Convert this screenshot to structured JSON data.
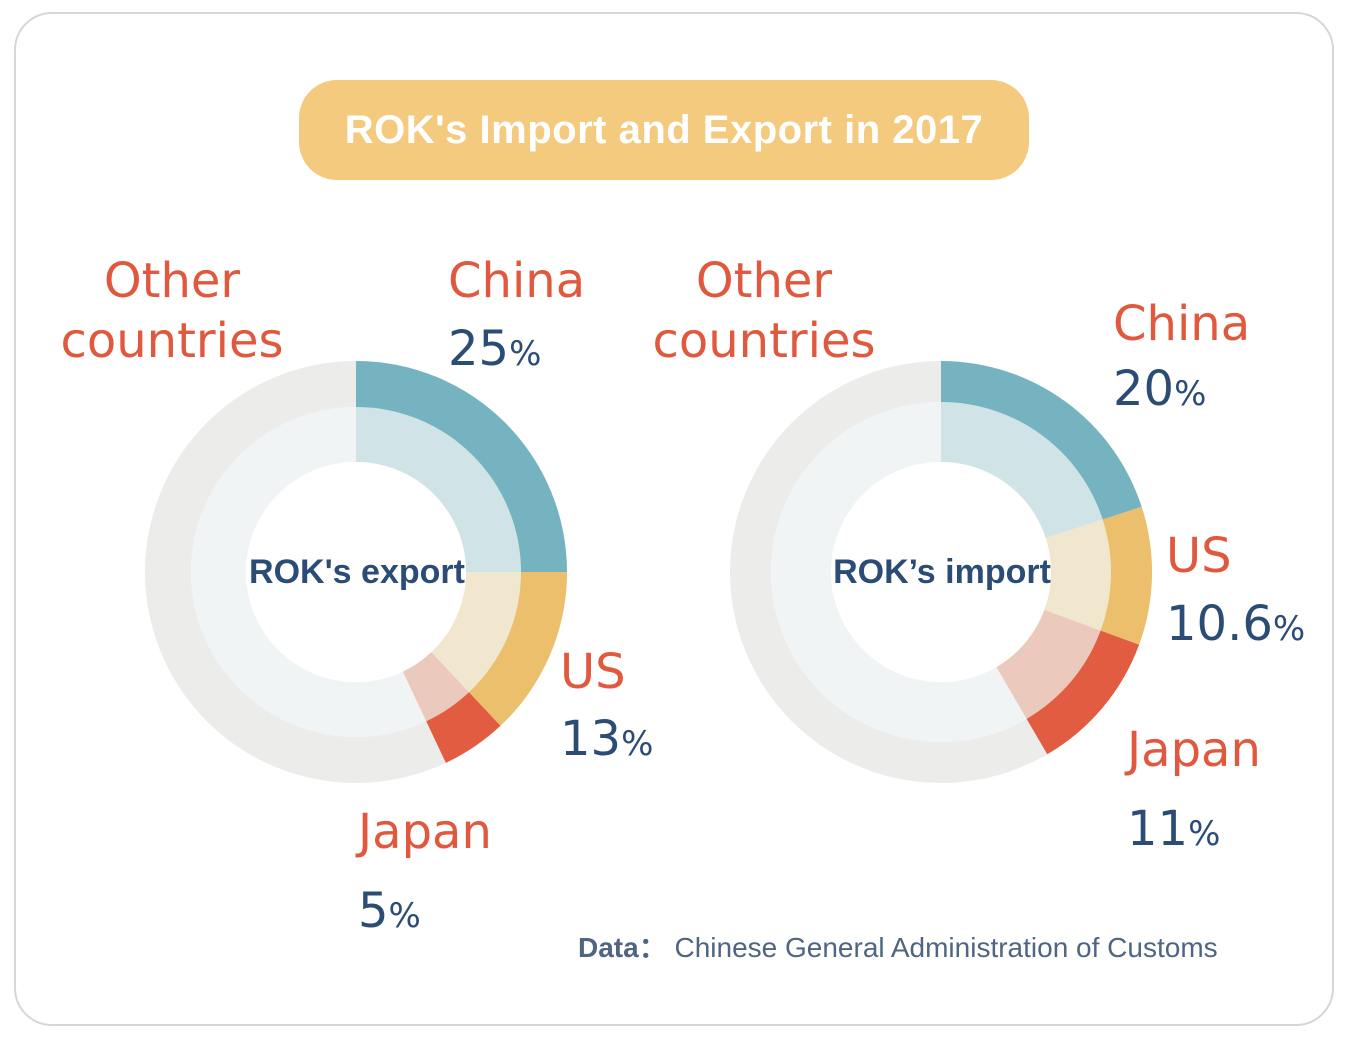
{
  "title": "ROK's Import and Export in 2017",
  "source": {
    "label": "Data",
    "separator": "：",
    "text": "Chinese General Administration of Customs"
  },
  "colors": {
    "china": "#76b3c1",
    "china_light": "#d0e4e7",
    "us": "#ebbf6c",
    "us_light": "#f1e6ce",
    "japan": "#e15c40",
    "japan_light": "#ecc9bd",
    "other": "#ececea",
    "other_light": "#f1f4f5",
    "name_text": "#e0583e",
    "value_text": "#2b4d75"
  },
  "chart_data": [
    {
      "type": "pie",
      "center_label": "ROK's export",
      "other_label": [
        "Other",
        "countries"
      ],
      "slices": [
        {
          "name": "China",
          "value": 25,
          "display": "25",
          "unit": "%"
        },
        {
          "name": "US",
          "value": 13,
          "display": "13",
          "unit": "%"
        },
        {
          "name": "Japan",
          "value": 5,
          "display": "5",
          "unit": "%"
        }
      ]
    },
    {
      "type": "pie",
      "center_label": "ROK’s import",
      "other_label": [
        "Other",
        "countries"
      ],
      "slices": [
        {
          "name": "China",
          "value": 20,
          "display": "20",
          "unit": "%"
        },
        {
          "name": "US",
          "value": 10.6,
          "display": "10.6",
          "unit": "%"
        },
        {
          "name": "Japan",
          "value": 11,
          "display": "11",
          "unit": "%"
        }
      ]
    }
  ]
}
